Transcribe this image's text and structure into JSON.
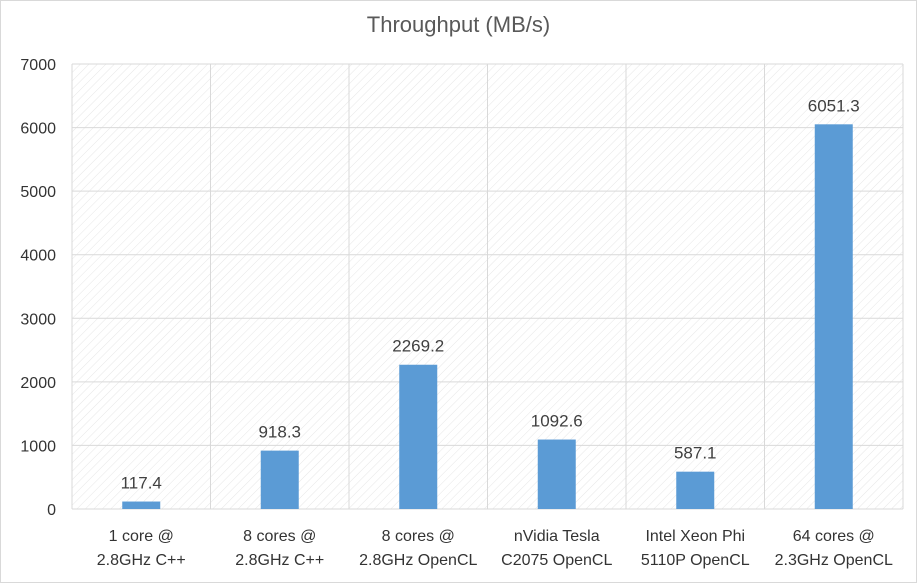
{
  "chart_data": {
    "type": "bar",
    "title": "Throughput (MB/s)",
    "xlabel": "",
    "ylabel": "",
    "categories": [
      [
        "1 core @",
        "2.8GHz C++"
      ],
      [
        "8 cores @",
        "2.8GHz C++"
      ],
      [
        "8 cores @",
        "2.8GHz OpenCL"
      ],
      [
        "nVidia Tesla",
        "C2075 OpenCL"
      ],
      [
        "Intel Xeon Phi",
        "5110P OpenCL"
      ],
      [
        "64 cores @",
        "2.3GHz OpenCL"
      ]
    ],
    "values": [
      117.4,
      918.3,
      2269.2,
      1092.6,
      587.1,
      6051.3
    ],
    "data_labels": [
      "117.4",
      "918.3",
      "2269.2",
      "1092.6",
      "587.1",
      "6051.3"
    ],
    "ylim": [
      0,
      7000
    ],
    "yticks": [
      0,
      1000,
      2000,
      3000,
      4000,
      5000,
      6000,
      7000
    ],
    "grid": true,
    "legend": "none",
    "bar_color": "#5b9bd5",
    "grid_color": "#d9d9d9",
    "hatch_color": "#e6e6e6"
  }
}
